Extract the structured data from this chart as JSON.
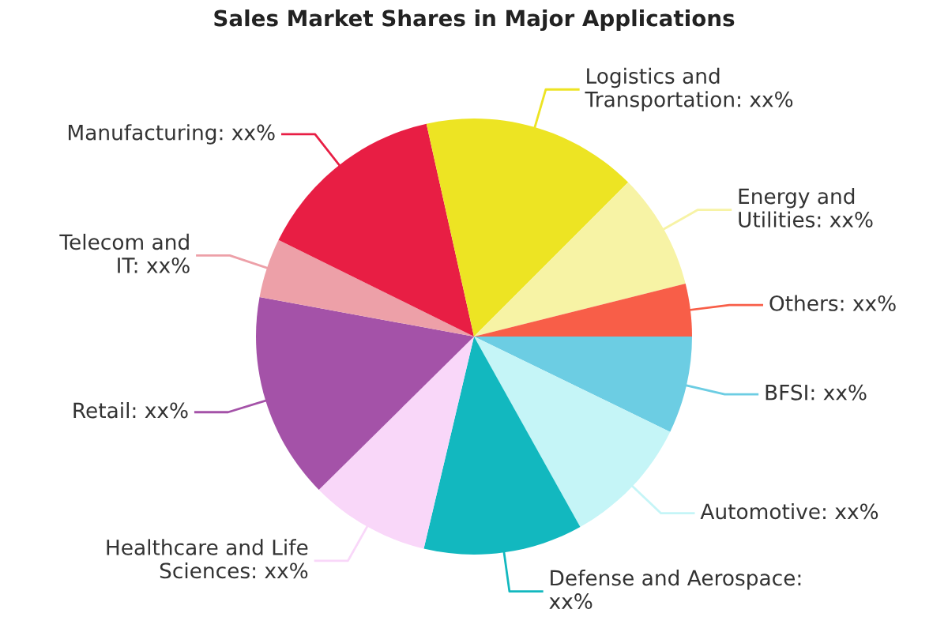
{
  "chart_data": {
    "type": "pie",
    "title": "Sales Market Shares in Major Applications",
    "categories": [
      "BFSI: xx%",
      "Automotive: xx%",
      "Defense and Aerospace:\nxx%",
      "Healthcare and Life\nSciences: xx%",
      "Retail: xx%",
      "Telecom and\nIT: xx%",
      "Manufacturing: xx%",
      "Logistics and\nTransportation: xx%",
      "Energy and\nUtilities: xx%",
      "Others: xx%"
    ],
    "values": [
      7.2,
      9.7,
      11.8,
      8.9,
      15.3,
      4.4,
      14.2,
      16.0,
      8.6,
      3.9
    ],
    "colors": [
      "#6ccde3",
      "#c5f5f7",
      "#12b8bf",
      "#f9d7f9",
      "#a452a8",
      "#eda0a8",
      "#e81e44",
      "#ede423",
      "#f7f3a5",
      "#f85e48"
    ],
    "legend": false
  }
}
